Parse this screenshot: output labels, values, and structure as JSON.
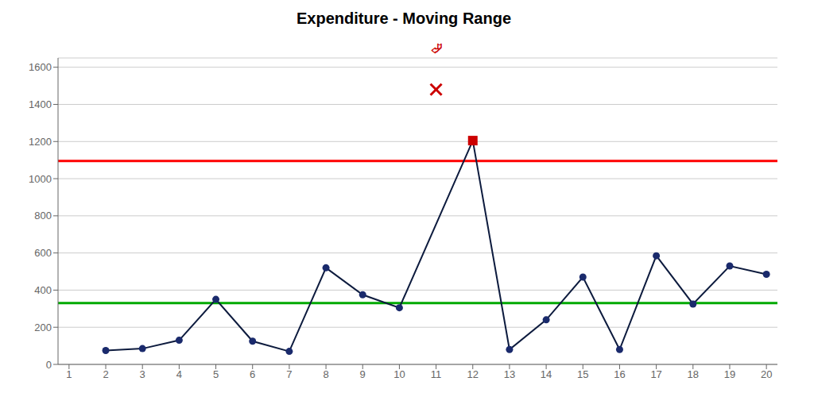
{
  "chart_data": {
    "type": "line",
    "title": "Expenditure - Moving Range",
    "xlim": [
      0.7,
      20.3
    ],
    "xticks": [
      1,
      2,
      3,
      4,
      5,
      6,
      7,
      8,
      9,
      10,
      11,
      12,
      13,
      14,
      15,
      16,
      17,
      18,
      19,
      20
    ],
    "ylim": [
      0,
      1650
    ],
    "yticks": [
      0,
      200,
      400,
      600,
      800,
      1000,
      1200,
      1400,
      1600
    ],
    "grid": true,
    "series": [
      {
        "type": "line",
        "color": "#0d1b3e",
        "x": [
          2,
          3,
          4,
          5,
          6,
          7,
          8,
          9,
          10,
          12,
          13,
          14,
          15,
          16,
          17,
          18,
          19,
          20
        ],
        "values": [
          75,
          85,
          130,
          350,
          125,
          70,
          520,
          375,
          305,
          1205,
          80,
          240,
          470,
          80,
          585,
          325,
          530,
          485
        ]
      },
      {
        "type": "scatter",
        "marker": "circle",
        "color": "#1a2a6c",
        "x": [
          2,
          3,
          4,
          5,
          6,
          7,
          8,
          9,
          10,
          13,
          14,
          15,
          16,
          17,
          18,
          19,
          20
        ],
        "values": [
          75,
          85,
          130,
          350,
          125,
          70,
          520,
          375,
          305,
          80,
          240,
          470,
          80,
          585,
          325,
          530,
          485
        ]
      },
      {
        "type": "scatter",
        "marker": "square",
        "color": "#cc0000",
        "x": [
          12
        ],
        "values": [
          1205
        ]
      },
      {
        "type": "scatter",
        "marker": "x",
        "color": "#cc0000",
        "x": [
          11
        ],
        "values": [
          1480
        ]
      }
    ],
    "reference_lines": [
      {
        "y": 1095,
        "color": "#ff0000"
      },
      {
        "y": 330,
        "color": "#00aa00"
      }
    ],
    "annotations": [
      {
        "text": "⮰",
        "x": 11,
        "color": "#cc0000"
      }
    ]
  }
}
